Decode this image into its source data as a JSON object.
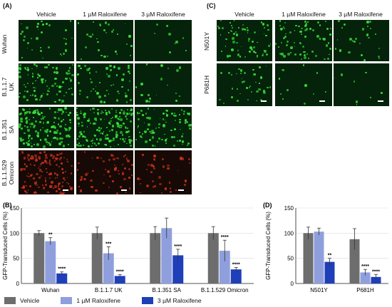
{
  "panel_a": {
    "label": "(A)",
    "columns": [
      "Vehicle",
      "1 µM Raloxifene",
      "3 µM Raloxifene"
    ],
    "rows": [
      "Wuhan",
      "B.1.1.7\nUK",
      "B.1.351\nSA",
      "B.1.1.529\nOmicron"
    ]
  },
  "panel_c": {
    "label": "(C)",
    "columns": [
      "Vehicle",
      "1 µM Raloxifene",
      "3 µM Raloxifene"
    ],
    "rows": [
      "N501Y",
      "P681H"
    ]
  },
  "colors": {
    "vehicle": "#6d6d6d",
    "ralox1": "#8f9fdd",
    "ralox3": "#1f3fb8",
    "cell_green": "#39e03a",
    "cell_red": "#c6301b"
  },
  "legend": {
    "vehicle": "Vehicle",
    "ralox1": "1 µM Raloxifene",
    "ralox3": "3 µM Raloxifene"
  },
  "chart_data": [
    {
      "panel": "(B)",
      "type": "bar",
      "ylabel": "GFP-Transduced Cells (%)",
      "ylim": [
        0,
        150
      ],
      "yticks": [
        0,
        50,
        100,
        150
      ],
      "categories": [
        "Wuhan",
        "B.1.1.7 UK",
        "B.1.351 SA",
        "B.1.1.529 Omicron"
      ],
      "series": [
        {
          "name": "Vehicle",
          "values": [
            100,
            100,
            100,
            100
          ],
          "errors": [
            5,
            12,
            13,
            13
          ]
        },
        {
          "name": "1 µM Raloxifene",
          "values": [
            84,
            60,
            110,
            65
          ],
          "errors": [
            7,
            13,
            20,
            21
          ]
        },
        {
          "name": "3 µM Raloxifene",
          "values": [
            20,
            15,
            56,
            28
          ],
          "errors": [
            3,
            3,
            12,
            4
          ]
        }
      ],
      "significance": [
        [
          "",
          "**",
          "****"
        ],
        [
          "",
          "***",
          "****"
        ],
        [
          "",
          "",
          "****"
        ],
        [
          "",
          "****",
          "****"
        ]
      ]
    },
    {
      "panel": "(D)",
      "type": "bar",
      "ylabel": "GFP-Transduced Cells (%)",
      "ylim": [
        0,
        150
      ],
      "yticks": [
        0,
        50,
        100,
        150
      ],
      "categories": [
        "N501Y",
        "P681H"
      ],
      "series": [
        {
          "name": "Vehicle",
          "values": [
            100,
            88
          ],
          "errors": [
            12,
            21
          ]
        },
        {
          "name": "1 µM Raloxifene",
          "values": [
            103,
            22
          ],
          "errors": [
            7,
            6
          ]
        },
        {
          "name": "3 µM Raloxifene",
          "values": [
            43,
            13
          ],
          "errors": [
            7,
            5
          ]
        }
      ],
      "significance": [
        [
          "",
          "",
          "**"
        ],
        [
          "",
          "****",
          "****"
        ]
      ]
    }
  ]
}
